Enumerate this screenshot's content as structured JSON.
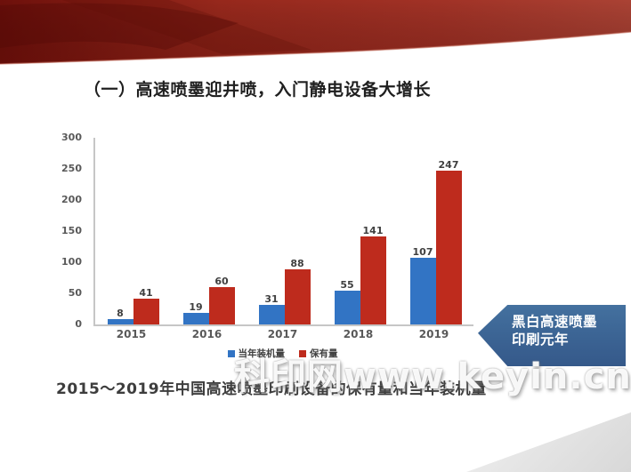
{
  "slide": {
    "title": "（一）高速喷墨迎井喷，入门静电设备大增长",
    "caption": "2015～2019年中国高速喷墨印刷设备的保有量和当年装机量",
    "watermark": "科印网www.keyin.cn",
    "callout": {
      "line1": "黑白高速喷墨",
      "line2": "印刷元年"
    }
  },
  "colors": {
    "series_blue": "#3274C4",
    "series_red": "#BE2B1D",
    "callout_blue": "#3B6393",
    "ribbon_red": "#9A2A1E",
    "axis_gray": "#C6C6C6",
    "tick_text_gray": "#595959"
  },
  "chart_data": {
    "type": "bar",
    "title": "",
    "xlabel": "",
    "ylabel": "",
    "categories": [
      "2015",
      "2016",
      "2017",
      "2018",
      "2019"
    ],
    "series": [
      {
        "name": "当年装机量",
        "color": "#3274C4",
        "values": [
          8,
          19,
          31,
          55,
          107
        ]
      },
      {
        "name": "保有量",
        "color": "#BE2B1D",
        "values": [
          41,
          60,
          88,
          141,
          247
        ]
      }
    ],
    "ylim": [
      0,
      300
    ],
    "yticks": [
      0,
      50,
      100,
      150,
      200,
      250,
      300
    ],
    "grid": false,
    "data_labels": true,
    "legend_position": "bottom"
  }
}
